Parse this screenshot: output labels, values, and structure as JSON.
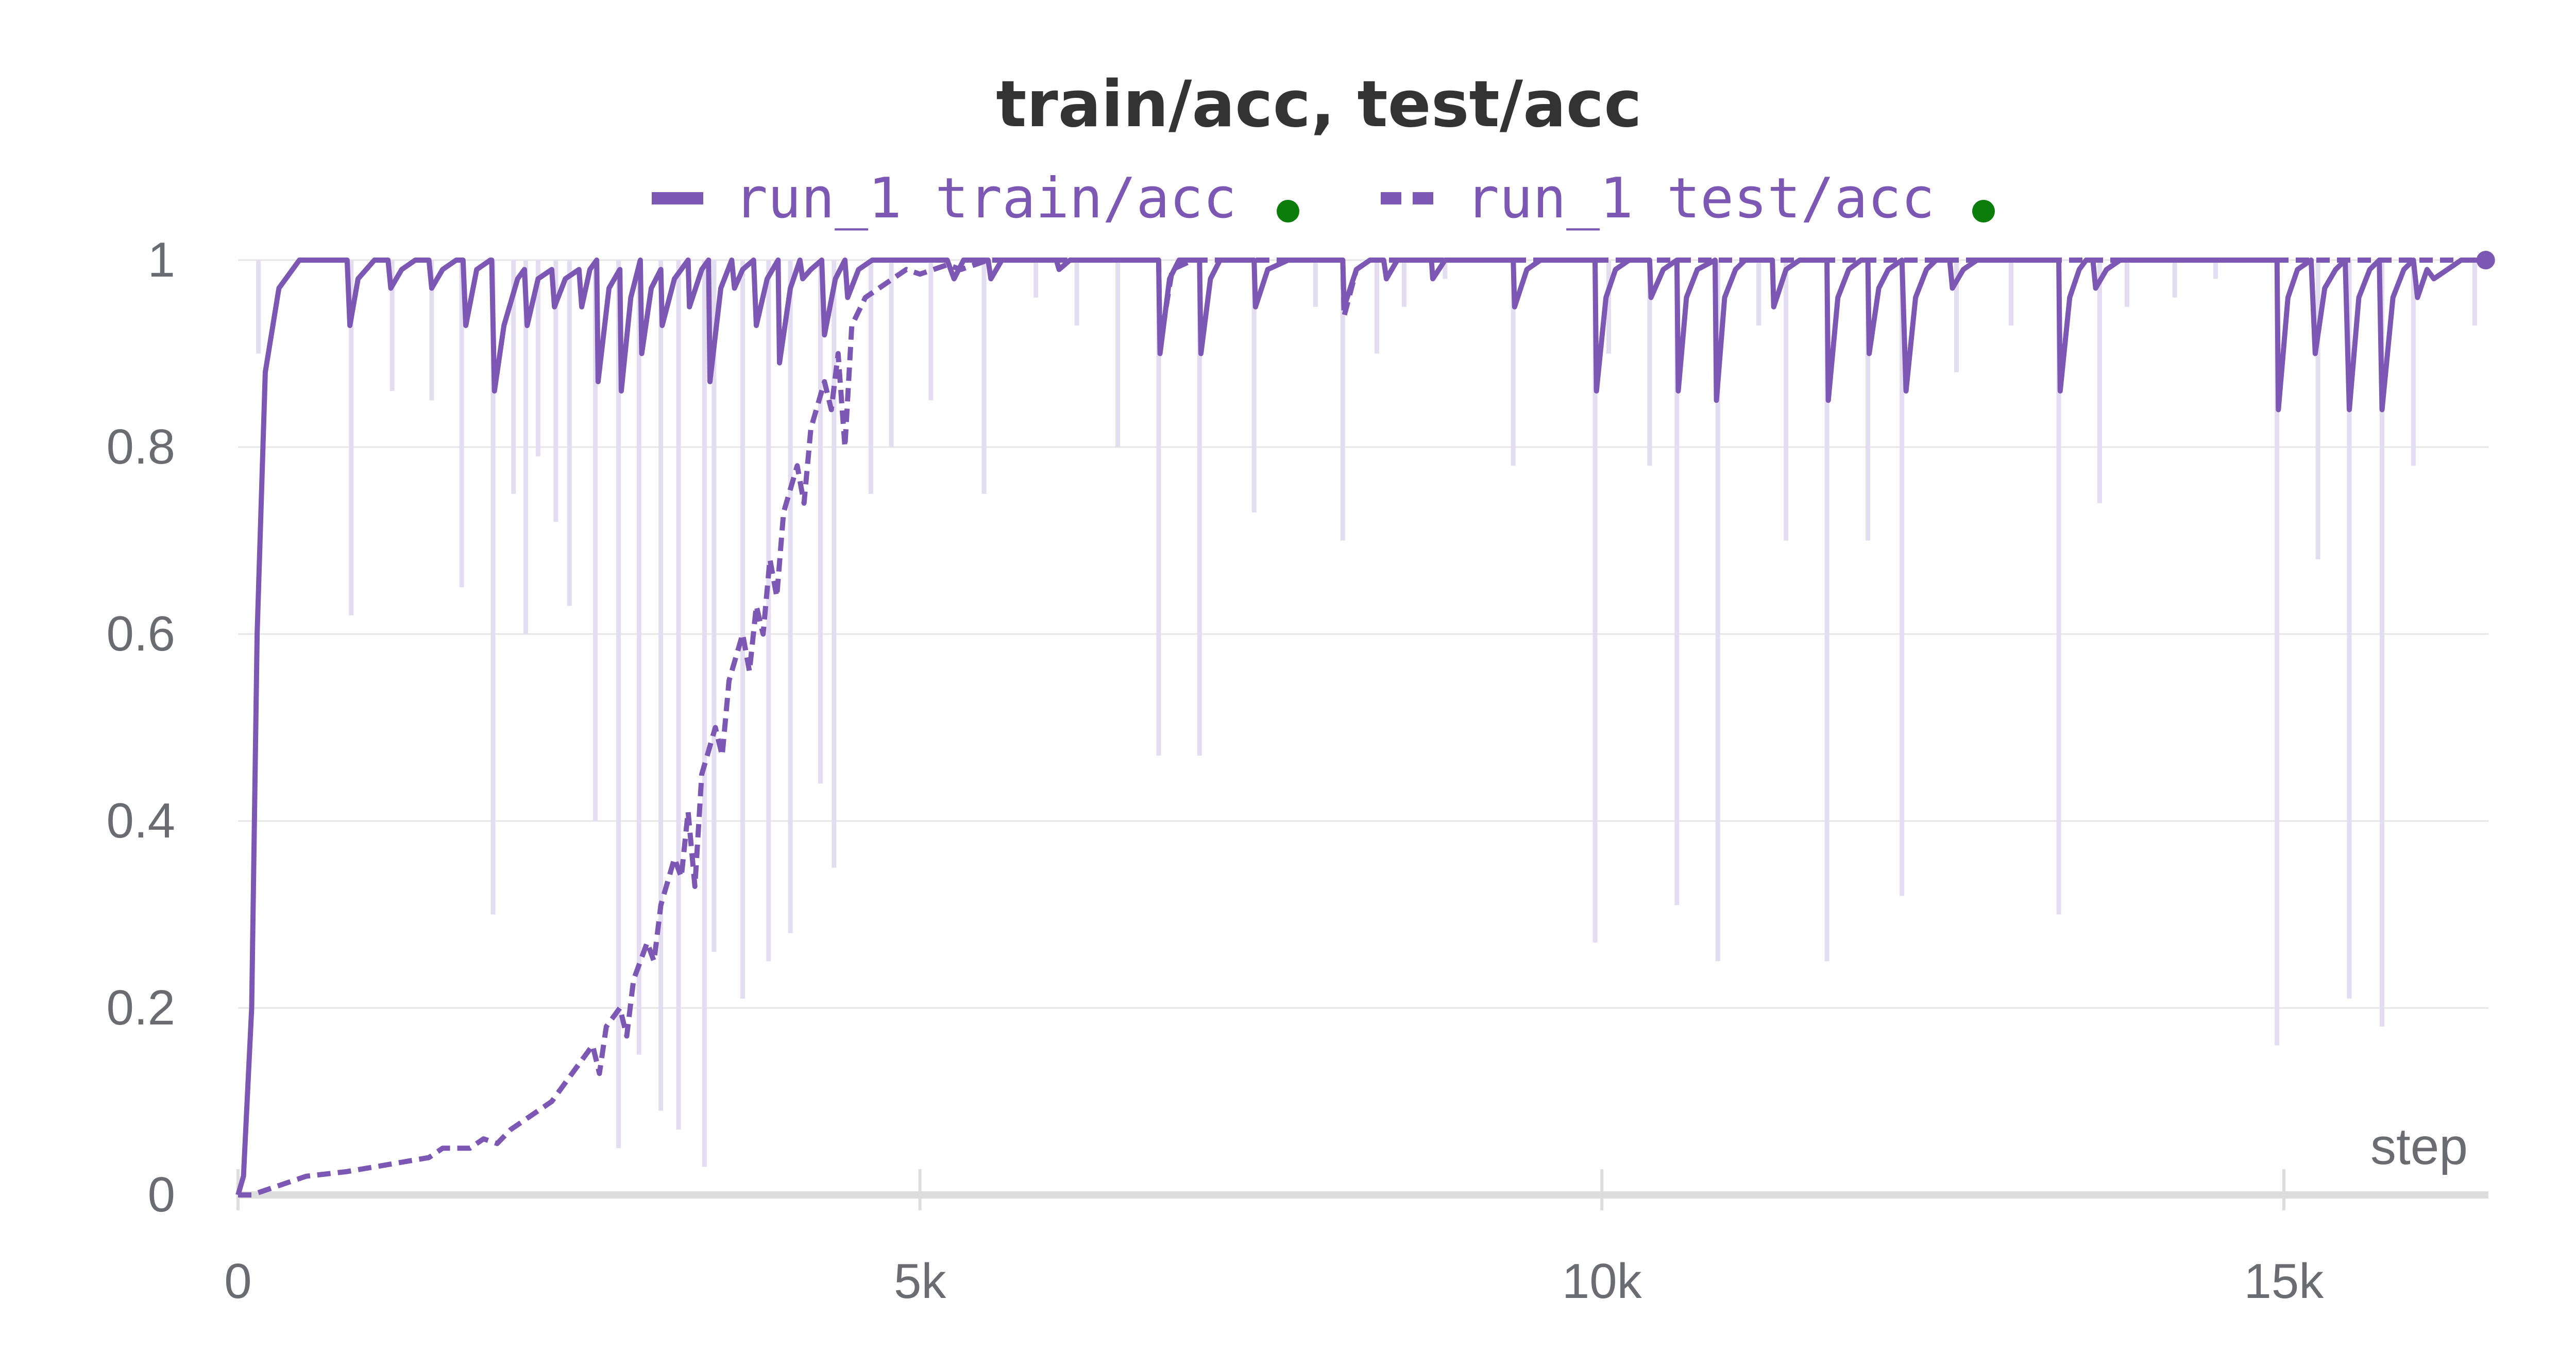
{
  "chart_data": {
    "type": "line",
    "title": "train/acc, test/acc",
    "xlabel": "step",
    "ylabel": "",
    "xlim": [
      0,
      16500
    ],
    "ylim": [
      0,
      1
    ],
    "x_ticks": [
      0,
      5000,
      10000,
      15000
    ],
    "x_tick_labels": [
      "0",
      "5k",
      "10k",
      "15k"
    ],
    "y_ticks": [
      0,
      0.2,
      0.4,
      0.6,
      0.8,
      1
    ],
    "y_tick_labels": [
      "0",
      "0.2",
      "0.4",
      "0.6",
      "0.8",
      "1"
    ],
    "grid": true,
    "legend_position": "top-center",
    "colors": {
      "line": "#7c57b4",
      "raw": "#e4dcf1",
      "status_dot": "#0a7d0a",
      "grid": "#e6e6e6",
      "axis": "#dddddd",
      "title": "#333333",
      "tick": "#6b6b72"
    },
    "series": [
      {
        "name": "run_1 train/acc",
        "style": "solid",
        "points": [
          [
            0,
            0.0
          ],
          [
            40,
            0.02
          ],
          [
            100,
            0.2
          ],
          [
            140,
            0.6
          ],
          [
            200,
            0.88
          ],
          [
            300,
            0.97
          ],
          [
            450,
            1.0
          ],
          [
            800,
            1.0
          ],
          [
            820,
            0.93
          ],
          [
            880,
            0.98
          ],
          [
            1000,
            1.0
          ],
          [
            1100,
            1.0
          ],
          [
            1120,
            0.97
          ],
          [
            1200,
            0.99
          ],
          [
            1300,
            1.0
          ],
          [
            1400,
            1.0
          ],
          [
            1420,
            0.97
          ],
          [
            1500,
            0.99
          ],
          [
            1600,
            1.0
          ],
          [
            1650,
            1.0
          ],
          [
            1670,
            0.93
          ],
          [
            1750,
            0.99
          ],
          [
            1850,
            1.0
          ],
          [
            1860,
            1.0
          ],
          [
            1880,
            0.86
          ],
          [
            1950,
            0.93
          ],
          [
            2050,
            0.98
          ],
          [
            2100,
            0.99
          ],
          [
            2120,
            0.93
          ],
          [
            2200,
            0.98
          ],
          [
            2300,
            0.99
          ],
          [
            2320,
            0.95
          ],
          [
            2400,
            0.98
          ],
          [
            2500,
            0.99
          ],
          [
            2520,
            0.95
          ],
          [
            2580,
            0.99
          ],
          [
            2630,
            1.0
          ],
          [
            2640,
            0.87
          ],
          [
            2720,
            0.97
          ],
          [
            2800,
            0.99
          ],
          [
            2810,
            0.86
          ],
          [
            2880,
            0.96
          ],
          [
            2950,
            1.0
          ],
          [
            2960,
            0.9
          ],
          [
            3030,
            0.97
          ],
          [
            3100,
            0.99
          ],
          [
            3110,
            0.93
          ],
          [
            3200,
            0.98
          ],
          [
            3300,
            1.0
          ],
          [
            3310,
            0.95
          ],
          [
            3400,
            0.99
          ],
          [
            3450,
            1.0
          ],
          [
            3460,
            0.87
          ],
          [
            3540,
            0.97
          ],
          [
            3620,
            1.0
          ],
          [
            3640,
            0.97
          ],
          [
            3700,
            0.99
          ],
          [
            3780,
            1.0
          ],
          [
            3800,
            0.93
          ],
          [
            3880,
            0.98
          ],
          [
            3960,
            1.0
          ],
          [
            3970,
            0.89
          ],
          [
            4050,
            0.97
          ],
          [
            4120,
            1.0
          ],
          [
            4140,
            0.98
          ],
          [
            4200,
            0.99
          ],
          [
            4280,
            1.0
          ],
          [
            4300,
            0.92
          ],
          [
            4380,
            0.98
          ],
          [
            4450,
            1.0
          ],
          [
            4470,
            0.96
          ],
          [
            4550,
            0.99
          ],
          [
            4650,
            1.0
          ],
          [
            4700,
            1.0
          ],
          [
            5000,
            1.0
          ],
          [
            5200,
            1.0
          ],
          [
            5250,
            0.98
          ],
          [
            5320,
            1.0
          ],
          [
            5400,
            1.0
          ],
          [
            5500,
            1.0
          ],
          [
            5520,
            0.98
          ],
          [
            5600,
            1.0
          ],
          [
            6000,
            1.0
          ],
          [
            6020,
            0.99
          ],
          [
            6100,
            1.0
          ],
          [
            6750,
            1.0
          ],
          [
            6760,
            0.9
          ],
          [
            6830,
            0.98
          ],
          [
            6900,
            1.0
          ],
          [
            7050,
            1.0
          ],
          [
            7060,
            0.9
          ],
          [
            7130,
            0.98
          ],
          [
            7200,
            1.0
          ],
          [
            7450,
            1.0
          ],
          [
            7460,
            0.95
          ],
          [
            7550,
            0.99
          ],
          [
            7700,
            1.0
          ],
          [
            8100,
            1.0
          ],
          [
            8110,
            0.95
          ],
          [
            8200,
            0.99
          ],
          [
            8300,
            1.0
          ],
          [
            8400,
            1.0
          ],
          [
            8420,
            0.98
          ],
          [
            8500,
            1.0
          ],
          [
            8750,
            1.0
          ],
          [
            8760,
            0.98
          ],
          [
            8850,
            1.0
          ],
          [
            9350,
            1.0
          ],
          [
            9360,
            0.95
          ],
          [
            9450,
            0.99
          ],
          [
            9550,
            1.0
          ],
          [
            9950,
            1.0
          ],
          [
            9960,
            0.86
          ],
          [
            10030,
            0.96
          ],
          [
            10100,
            0.99
          ],
          [
            10200,
            1.0
          ],
          [
            10350,
            1.0
          ],
          [
            10360,
            0.96
          ],
          [
            10450,
            0.99
          ],
          [
            10550,
            1.0
          ],
          [
            10550,
            1.0
          ],
          [
            10560,
            0.86
          ],
          [
            10620,
            0.96
          ],
          [
            10700,
            0.99
          ],
          [
            10830,
            1.0
          ],
          [
            10840,
            0.85
          ],
          [
            10900,
            0.96
          ],
          [
            10980,
            0.99
          ],
          [
            11050,
            1.0
          ],
          [
            11250,
            1.0
          ],
          [
            11260,
            0.95
          ],
          [
            11350,
            0.99
          ],
          [
            11450,
            1.0
          ],
          [
            11650,
            1.0
          ],
          [
            11660,
            0.85
          ],
          [
            11730,
            0.96
          ],
          [
            11810,
            0.99
          ],
          [
            11900,
            1.0
          ],
          [
            11950,
            1.0
          ],
          [
            11960,
            0.9
          ],
          [
            12030,
            0.97
          ],
          [
            12100,
            0.99
          ],
          [
            12200,
            1.0
          ],
          [
            12230,
            0.86
          ],
          [
            12300,
            0.96
          ],
          [
            12380,
            0.99
          ],
          [
            12450,
            1.0
          ],
          [
            12550,
            1.0
          ],
          [
            12570,
            0.97
          ],
          [
            12650,
            0.99
          ],
          [
            12750,
            1.0
          ],
          [
            13000,
            1.0
          ],
          [
            13350,
            1.0
          ],
          [
            13360,
            0.86
          ],
          [
            13430,
            0.96
          ],
          [
            13500,
            0.99
          ],
          [
            13550,
            1.0
          ],
          [
            13600,
            1.0
          ],
          [
            13620,
            0.97
          ],
          [
            13700,
            0.99
          ],
          [
            13800,
            1.0
          ],
          [
            14000,
            1.0
          ],
          [
            14400,
            1.0
          ],
          [
            14950,
            1.0
          ],
          [
            14960,
            0.84
          ],
          [
            15030,
            0.96
          ],
          [
            15100,
            0.99
          ],
          [
            15200,
            1.0
          ],
          [
            15230,
            0.9
          ],
          [
            15300,
            0.97
          ],
          [
            15380,
            0.99
          ],
          [
            15450,
            1.0
          ],
          [
            15480,
            0.84
          ],
          [
            15550,
            0.96
          ],
          [
            15630,
            0.99
          ],
          [
            15700,
            1.0
          ],
          [
            15720,
            0.84
          ],
          [
            15800,
            0.96
          ],
          [
            15880,
            0.99
          ],
          [
            15950,
            1.0
          ],
          [
            15980,
            0.96
          ],
          [
            16050,
            0.99
          ],
          [
            16100,
            0.98
          ],
          [
            16200,
            0.99
          ],
          [
            16300,
            1.0
          ],
          [
            16480,
            1.0
          ]
        ]
      },
      {
        "name": "run_1 test/acc",
        "style": "dashed",
        "points": [
          [
            0,
            0.0
          ],
          [
            100,
            0.0
          ],
          [
            300,
            0.01
          ],
          [
            500,
            0.02
          ],
          [
            800,
            0.025
          ],
          [
            1000,
            0.03
          ],
          [
            1200,
            0.035
          ],
          [
            1400,
            0.04
          ],
          [
            1500,
            0.05
          ],
          [
            1700,
            0.05
          ],
          [
            1800,
            0.06
          ],
          [
            1900,
            0.055
          ],
          [
            2000,
            0.07
          ],
          [
            2100,
            0.08
          ],
          [
            2200,
            0.09
          ],
          [
            2300,
            0.1
          ],
          [
            2400,
            0.12
          ],
          [
            2500,
            0.14
          ],
          [
            2600,
            0.16
          ],
          [
            2650,
            0.13
          ],
          [
            2700,
            0.18
          ],
          [
            2800,
            0.2
          ],
          [
            2850,
            0.17
          ],
          [
            2900,
            0.23
          ],
          [
            3000,
            0.27
          ],
          [
            3050,
            0.25
          ],
          [
            3100,
            0.31
          ],
          [
            3200,
            0.36
          ],
          [
            3250,
            0.34
          ],
          [
            3300,
            0.41
          ],
          [
            3350,
            0.33
          ],
          [
            3400,
            0.45
          ],
          [
            3500,
            0.5
          ],
          [
            3550,
            0.47
          ],
          [
            3600,
            0.55
          ],
          [
            3700,
            0.6
          ],
          [
            3750,
            0.56
          ],
          [
            3800,
            0.63
          ],
          [
            3850,
            0.6
          ],
          [
            3900,
            0.68
          ],
          [
            3950,
            0.64
          ],
          [
            4000,
            0.73
          ],
          [
            4100,
            0.78
          ],
          [
            4150,
            0.74
          ],
          [
            4200,
            0.82
          ],
          [
            4300,
            0.87
          ],
          [
            4350,
            0.84
          ],
          [
            4400,
            0.9
          ],
          [
            4450,
            0.8
          ],
          [
            4500,
            0.93
          ],
          [
            4600,
            0.96
          ],
          [
            4700,
            0.97
          ],
          [
            4800,
            0.98
          ],
          [
            4900,
            0.99
          ],
          [
            5000,
            0.985
          ],
          [
            5100,
            0.99
          ],
          [
            5200,
            0.995
          ],
          [
            5300,
            0.99
          ],
          [
            5400,
            0.995
          ],
          [
            5500,
            1.0
          ],
          [
            5700,
            1.0
          ],
          [
            6000,
            1.0
          ],
          [
            6500,
            1.0
          ],
          [
            6750,
            1.0
          ],
          [
            6760,
            0.91
          ],
          [
            6850,
            0.99
          ],
          [
            7000,
            1.0
          ],
          [
            8100,
            1.0
          ],
          [
            8110,
            0.94
          ],
          [
            8200,
            0.99
          ],
          [
            8300,
            1.0
          ],
          [
            16480,
            1.0
          ]
        ]
      }
    ],
    "raw_spikes": [
      [
        150,
        0.9
      ],
      [
        830,
        0.62
      ],
      [
        1130,
        0.86
      ],
      [
        1420,
        0.85
      ],
      [
        1640,
        0.65
      ],
      [
        1870,
        0.3
      ],
      [
        2020,
        0.75
      ],
      [
        2110,
        0.6
      ],
      [
        2200,
        0.79
      ],
      [
        2330,
        0.72
      ],
      [
        2430,
        0.63
      ],
      [
        2620,
        0.4
      ],
      [
        2790,
        0.05
      ],
      [
        2940,
        0.15
      ],
      [
        3100,
        0.09
      ],
      [
        3230,
        0.07
      ],
      [
        3420,
        0.03
      ],
      [
        3490,
        0.26
      ],
      [
        3700,
        0.21
      ],
      [
        3890,
        0.25
      ],
      [
        4050,
        0.28
      ],
      [
        4270,
        0.44
      ],
      [
        4370,
        0.35
      ],
      [
        4640,
        0.75
      ],
      [
        4790,
        0.8
      ],
      [
        5080,
        0.85
      ],
      [
        5470,
        0.75
      ],
      [
        5850,
        0.96
      ],
      [
        6150,
        0.93
      ],
      [
        6450,
        0.8
      ],
      [
        6750,
        0.47
      ],
      [
        7050,
        0.47
      ],
      [
        7450,
        0.73
      ],
      [
        7900,
        0.95
      ],
      [
        8100,
        0.7
      ],
      [
        8350,
        0.9
      ],
      [
        8550,
        0.95
      ],
      [
        8850,
        0.98
      ],
      [
        9350,
        0.78
      ],
      [
        9950,
        0.27
      ],
      [
        10050,
        0.9
      ],
      [
        10350,
        0.78
      ],
      [
        10550,
        0.31
      ],
      [
        10850,
        0.25
      ],
      [
        11150,
        0.93
      ],
      [
        11350,
        0.7
      ],
      [
        11650,
        0.25
      ],
      [
        11950,
        0.7
      ],
      [
        12200,
        0.32
      ],
      [
        12600,
        0.88
      ],
      [
        13000,
        0.93
      ],
      [
        13350,
        0.3
      ],
      [
        13650,
        0.74
      ],
      [
        13850,
        0.95
      ],
      [
        14200,
        0.96
      ],
      [
        14500,
        0.98
      ],
      [
        14950,
        0.16
      ],
      [
        15250,
        0.68
      ],
      [
        15480,
        0.21
      ],
      [
        15720,
        0.18
      ],
      [
        15950,
        0.78
      ],
      [
        16400,
        0.93
      ]
    ],
    "legend_entries": [
      {
        "label": "run_1 train/acc",
        "line_style": "solid",
        "status": "green-dot"
      },
      {
        "label": "run_1 test/acc",
        "line_style": "dashed",
        "status": "green-dot"
      }
    ]
  }
}
